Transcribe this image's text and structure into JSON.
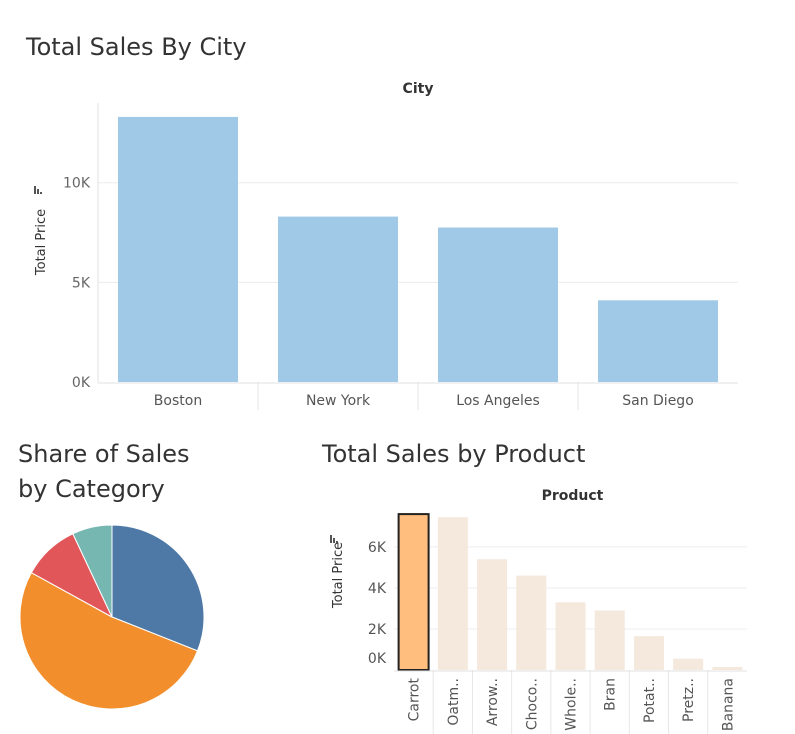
{
  "dashboard": {
    "city_title": "Total Sales By City",
    "category_title": "Share of Sales\nby Category",
    "product_title": "Total Sales by Product"
  },
  "chart_data": [
    {
      "type": "bar",
      "title": "Total Sales By City",
      "header": "City",
      "xlabel": "",
      "ylabel": "Total Price",
      "categories": [
        "Boston",
        "New York",
        "Los Angeles",
        "San Diego"
      ],
      "values": [
        13300,
        8300,
        7750,
        4100
      ],
      "ylim": [
        0,
        14000
      ],
      "yticks": [
        0,
        5000,
        10000
      ],
      "ytick_labels": [
        "0K",
        "5K",
        "10K"
      ],
      "grid": true,
      "colors": {
        "bar": "#a0c9e8"
      }
    },
    {
      "type": "pie",
      "title": "Share of Sales by Category",
      "slices": [
        {
          "value": 31,
          "color": "#4e79a7"
        },
        {
          "value": 52,
          "color": "#f28e2b"
        },
        {
          "value": 10,
          "color": "#e15759"
        },
        {
          "value": 7,
          "color": "#76b7b2"
        }
      ]
    },
    {
      "type": "bar",
      "title": "Total Sales by Product",
      "header": "Product",
      "xlabel": "",
      "ylabel": "Total Price",
      "categories": [
        "Carrot",
        "Oatm..",
        "Arrow..",
        "Choco..",
        "Whole..",
        "Bran",
        "Potat..",
        "Pretz..",
        "Banana"
      ],
      "values": [
        7600,
        7450,
        5400,
        4600,
        3300,
        2900,
        1650,
        550,
        150
      ],
      "ylim": [
        0,
        7800
      ],
      "yticks": [
        0,
        2000,
        4000,
        6000
      ],
      "ytick_labels": [
        "0K",
        "2K",
        "4K",
        "6K"
      ],
      "highlighted": "Carrot",
      "grid": true,
      "colors": {
        "bar": "#f5e8dc",
        "highlight": "#ffbe7d",
        "highlight_border": "#222222"
      }
    }
  ]
}
